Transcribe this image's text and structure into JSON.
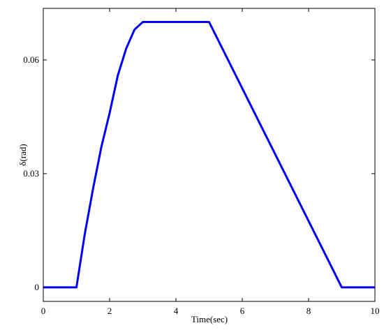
{
  "chart_data": {
    "type": "line",
    "xlabel": "Time(sec)",
    "ylabel": "δ(rad)",
    "x": [
      0,
      1,
      1.25,
      1.5,
      1.75,
      2,
      2.25,
      2.5,
      2.75,
      3,
      5,
      9,
      10
    ],
    "series": [
      {
        "name": "δ",
        "color": "#0000ff",
        "values": [
          0,
          0,
          0.014,
          0.026,
          0.037,
          0.046,
          0.056,
          0.063,
          0.068,
          0.07,
          0.07,
          0,
          0
        ]
      }
    ],
    "xlim": [
      0,
      10
    ],
    "xticks": [
      0,
      2,
      4,
      6,
      8,
      10
    ],
    "ylim": [
      -0.0037,
      0.0736
    ],
    "yticks": [
      0,
      0.03,
      0.06
    ]
  }
}
